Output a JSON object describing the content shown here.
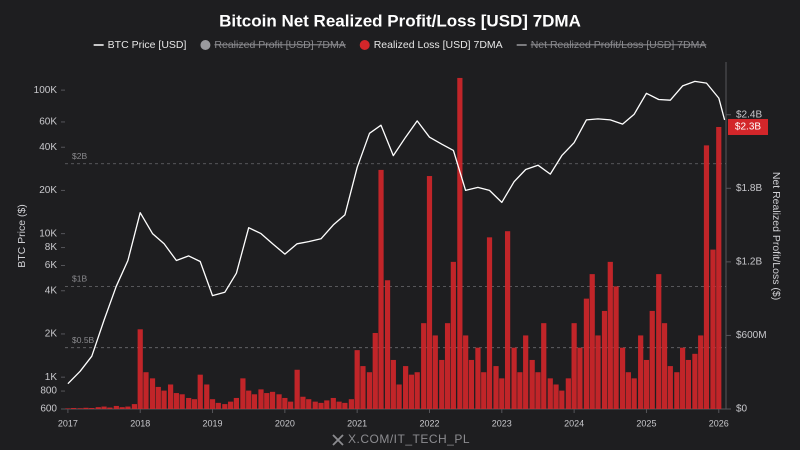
{
  "chart_data": {
    "type": "price-loss",
    "title": "Bitcoin Net Realized Profit/Loss [USD] 7DMA",
    "y_label": "BTC Price ($)",
    "y2_label": "Net Realized Profit/Loss ($)",
    "watermark": "X.COM/IT_TECH_PL",
    "y_scale": "log",
    "background": "#1e1e20",
    "xlim": [
      2016.96,
      2026.1
    ],
    "xticks": [
      2017,
      2018,
      2019,
      2020,
      2021,
      2022,
      2023,
      2024,
      2025,
      2026
    ],
    "ylim": [
      600,
      157000
    ],
    "yticks": [
      600,
      800,
      {
        "value": 1000,
        "label": "1K"
      },
      {
        "value": 2000,
        "label": "2K"
      },
      {
        "value": 4000,
        "label": "4K"
      },
      {
        "value": 6000,
        "label": "6K"
      },
      {
        "value": 8000,
        "label": "8K"
      },
      {
        "value": 10000,
        "label": "10K"
      },
      {
        "value": 20000,
        "label": "20K"
      },
      {
        "value": 40000,
        "label": "40K"
      },
      {
        "value": 60000,
        "label": "60K"
      },
      {
        "value": 100000,
        "label": "100K"
      }
    ],
    "y2lim": [
      0,
      2830
    ],
    "y2ticks": [
      {
        "value": 0,
        "label": "$0"
      },
      {
        "value": 600,
        "label": "$600M"
      },
      {
        "value": 1200,
        "label": "$1.2B"
      },
      {
        "value": 1800,
        "label": "$1.8B"
      },
      {
        "value": 2400,
        "label": "$2.4B"
      }
    ],
    "ref_lines": [
      {
        "value": 2000,
        "label": "$2B"
      },
      {
        "value": 1000,
        "label": "$1B"
      },
      {
        "value": 500,
        "label": "$0.5B"
      }
    ],
    "annotations": [
      {
        "value": 2300,
        "label": "$2.3B",
        "color": "#d3262a"
      }
    ],
    "series": [
      {
        "name": "BTC Price [USD]",
        "color": "#ffffff",
        "kind": "line",
        "visible": true,
        "x": [
          2017.0,
          2017.17,
          2017.33,
          2017.5,
          2017.67,
          2017.83,
          2018.0,
          2018.17,
          2018.33,
          2018.5,
          2018.67,
          2018.83,
          2019.0,
          2019.17,
          2019.33,
          2019.5,
          2019.67,
          2019.83,
          2020.0,
          2020.17,
          2020.33,
          2020.5,
          2020.67,
          2020.83,
          2021.0,
          2021.17,
          2021.33,
          2021.5,
          2021.67,
          2021.83,
          2022.0,
          2022.17,
          2022.33,
          2022.5,
          2022.67,
          2022.83,
          2023.0,
          2023.17,
          2023.33,
          2023.5,
          2023.67,
          2023.83,
          2024.0,
          2024.17,
          2024.33,
          2024.5,
          2024.67,
          2024.83,
          2025.0,
          2025.17,
          2025.33,
          2025.5,
          2025.67,
          2025.83,
          2026.0,
          2026.08
        ],
        "values": [
          900,
          1100,
          1400,
          2500,
          4300,
          6500,
          14000,
          10000,
          8500,
          6500,
          7000,
          6400,
          3700,
          3900,
          5300,
          11000,
          10000,
          8500,
          7200,
          8500,
          8800,
          9200,
          11500,
          13500,
          29000,
          50000,
          57000,
          35000,
          47000,
          61000,
          47000,
          42000,
          38000,
          20000,
          21000,
          20000,
          16500,
          23000,
          28000,
          30000,
          26000,
          35000,
          43000,
          62000,
          63000,
          62000,
          58000,
          68000,
          95000,
          86000,
          85000,
          107000,
          115000,
          112000,
          88000,
          62000
        ]
      },
      {
        "name": "Realized Profit [USD] 7DMA",
        "color": "#9a9a9e",
        "kind": "bar",
        "visible": false
      },
      {
        "name": "Realized Loss [USD] 7DMA",
        "color": "#d3262a",
        "kind": "bar",
        "axis": "y2",
        "visible": true,
        "x": [
          2017.0,
          2017.08,
          2017.17,
          2017.25,
          2017.33,
          2017.42,
          2017.5,
          2017.58,
          2017.67,
          2017.75,
          2017.83,
          2017.92,
          2018.0,
          2018.08,
          2018.17,
          2018.25,
          2018.33,
          2018.42,
          2018.5,
          2018.58,
          2018.67,
          2018.75,
          2018.83,
          2018.92,
          2019.0,
          2019.08,
          2019.17,
          2019.25,
          2019.33,
          2019.42,
          2019.5,
          2019.58,
          2019.67,
          2019.75,
          2019.83,
          2019.92,
          2020.0,
          2020.08,
          2020.17,
          2020.25,
          2020.33,
          2020.42,
          2020.5,
          2020.58,
          2020.67,
          2020.75,
          2020.83,
          2020.92,
          2021.0,
          2021.08,
          2021.17,
          2021.25,
          2021.33,
          2021.42,
          2021.5,
          2021.58,
          2021.67,
          2021.75,
          2021.83,
          2021.92,
          2022.0,
          2022.08,
          2022.17,
          2022.25,
          2022.33,
          2022.42,
          2022.5,
          2022.58,
          2022.67,
          2022.75,
          2022.83,
          2022.92,
          2023.0,
          2023.08,
          2023.17,
          2023.25,
          2023.33,
          2023.42,
          2023.5,
          2023.58,
          2023.67,
          2023.75,
          2023.83,
          2023.92,
          2024.0,
          2024.08,
          2024.17,
          2024.25,
          2024.33,
          2024.42,
          2024.5,
          2024.58,
          2024.67,
          2024.75,
          2024.83,
          2024.92,
          2025.0,
          2025.08,
          2025.17,
          2025.25,
          2025.33,
          2025.42,
          2025.5,
          2025.58,
          2025.67,
          2025.75,
          2025.83,
          2025.92,
          2026.0
        ],
        "values": [
          5,
          8,
          6,
          10,
          8,
          15,
          20,
          12,
          25,
          15,
          20,
          40,
          650,
          300,
          250,
          180,
          150,
          200,
          130,
          120,
          90,
          80,
          280,
          200,
          80,
          50,
          40,
          60,
          90,
          250,
          150,
          120,
          160,
          130,
          140,
          120,
          90,
          60,
          320,
          100,
          80,
          60,
          50,
          70,
          90,
          60,
          50,
          80,
          480,
          350,
          300,
          620,
          1950,
          1050,
          400,
          200,
          350,
          280,
          300,
          700,
          1900,
          600,
          400,
          700,
          1200,
          2700,
          600,
          400,
          500,
          300,
          1400,
          350,
          250,
          1450,
          500,
          300,
          600,
          400,
          300,
          700,
          250,
          200,
          150,
          250,
          700,
          500,
          900,
          1100,
          600,
          800,
          1200,
          1000,
          500,
          300,
          250,
          600,
          400,
          800,
          1100,
          700,
          350,
          300,
          500,
          400,
          450,
          600,
          2150,
          1300,
          2300
        ]
      },
      {
        "name": "Net Realized Profit/Loss [USD] 7DMA",
        "color": "#9a9a9e",
        "kind": "line",
        "visible": false
      }
    ]
  }
}
